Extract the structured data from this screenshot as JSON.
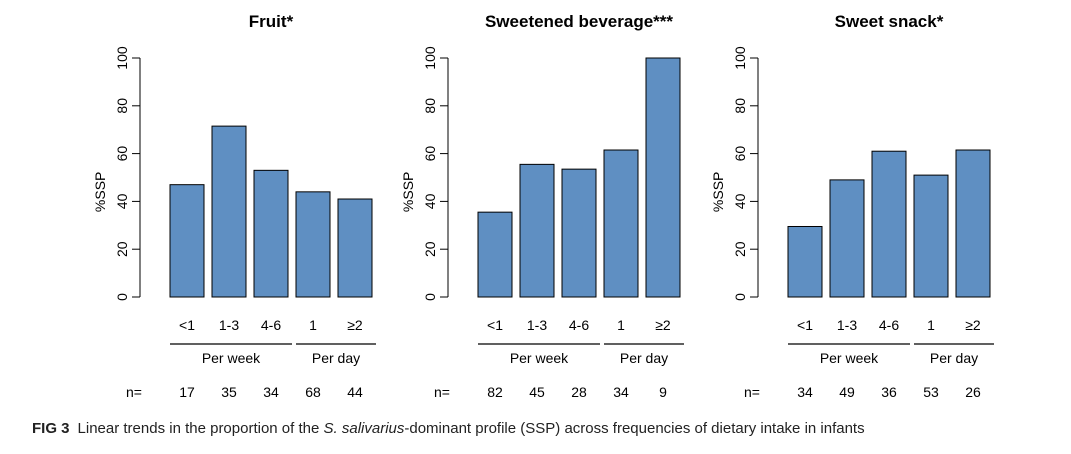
{
  "figure": {
    "caption": {
      "label": "FIG 3",
      "text_before": "Linear trends in the proportion of the ",
      "text_italic": "S. salivarius",
      "text_after": "-dominant profile (SSP) across frequencies of dietary intake in infants"
    }
  },
  "chart_data": [
    {
      "type": "bar",
      "title": "Fruit*",
      "ylabel": "%SSP",
      "ylim": [
        0,
        100
      ],
      "yticks": [
        "0",
        "20",
        "40",
        "60",
        "80",
        "100"
      ],
      "categories": [
        "<1",
        "1-3",
        "4-6",
        "1",
        "≥2"
      ],
      "groups": [
        {
          "label": "Per week",
          "categories": [
            "<1",
            "1-3",
            "4-6"
          ]
        },
        {
          "label": "Per day",
          "categories": [
            "1",
            "≥2"
          ]
        }
      ],
      "values": [
        47,
        71.5,
        53,
        44,
        41
      ],
      "n_label": "n=",
      "n": [
        "17",
        "35",
        "34",
        "68",
        "44"
      ],
      "bar_color": "#5f8fc2",
      "grid": false
    },
    {
      "type": "bar",
      "title": "Sweetened beverage***",
      "ylabel": "%SSP",
      "ylim": [
        0,
        100
      ],
      "yticks": [
        "0",
        "20",
        "40",
        "60",
        "80",
        "100"
      ],
      "categories": [
        "<1",
        "1-3",
        "4-6",
        "1",
        "≥2"
      ],
      "groups": [
        {
          "label": "Per week",
          "categories": [
            "<1",
            "1-3",
            "4-6"
          ]
        },
        {
          "label": "Per day",
          "categories": [
            "1",
            "≥2"
          ]
        }
      ],
      "values": [
        35.5,
        55.5,
        53.5,
        61.5,
        100
      ],
      "n_label": "n=",
      "n": [
        "82",
        "45",
        "28",
        "34",
        "9"
      ],
      "bar_color": "#5f8fc2",
      "grid": false
    },
    {
      "type": "bar",
      "title": "Sweet snack*",
      "ylabel": "%SSP",
      "ylim": [
        0,
        100
      ],
      "yticks": [
        "0",
        "20",
        "40",
        "60",
        "80",
        "100"
      ],
      "categories": [
        "<1",
        "1-3",
        "4-6",
        "1",
        "≥2"
      ],
      "groups": [
        {
          "label": "Per week",
          "categories": [
            "<1",
            "1-3",
            "4-6"
          ]
        },
        {
          "label": "Per day",
          "categories": [
            "1",
            "≥2"
          ]
        }
      ],
      "values": [
        29.5,
        49,
        61,
        51,
        61.5
      ],
      "n_label": "n=",
      "n": [
        "34",
        "49",
        "36",
        "53",
        "26"
      ],
      "bar_color": "#5f8fc2",
      "grid": false
    }
  ]
}
